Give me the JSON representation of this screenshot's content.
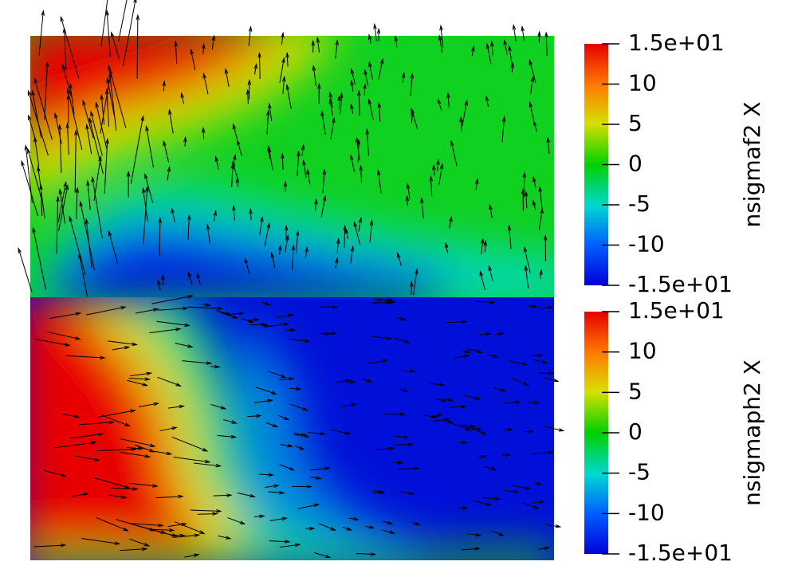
{
  "chart_data": [
    {
      "type": "colorbar",
      "label": "nsigmaf2 X",
      "ylim": [
        -15,
        15
      ],
      "yticks": [
        {
          "value": 15,
          "label": "1.5e+01"
        },
        10,
        5,
        0,
        -5,
        -10,
        {
          "value": -15,
          "label": "-1.5e+01"
        }
      ]
    },
    {
      "type": "colorbar",
      "label": "nsigmaph2 X",
      "ylim": [
        -15,
        15
      ],
      "yticks": [
        {
          "value": 15,
          "label": "1.5e+01"
        },
        10,
        5,
        0,
        -5,
        -10,
        {
          "value": -15,
          "label": "-1.5e+01"
        }
      ]
    }
  ]
}
